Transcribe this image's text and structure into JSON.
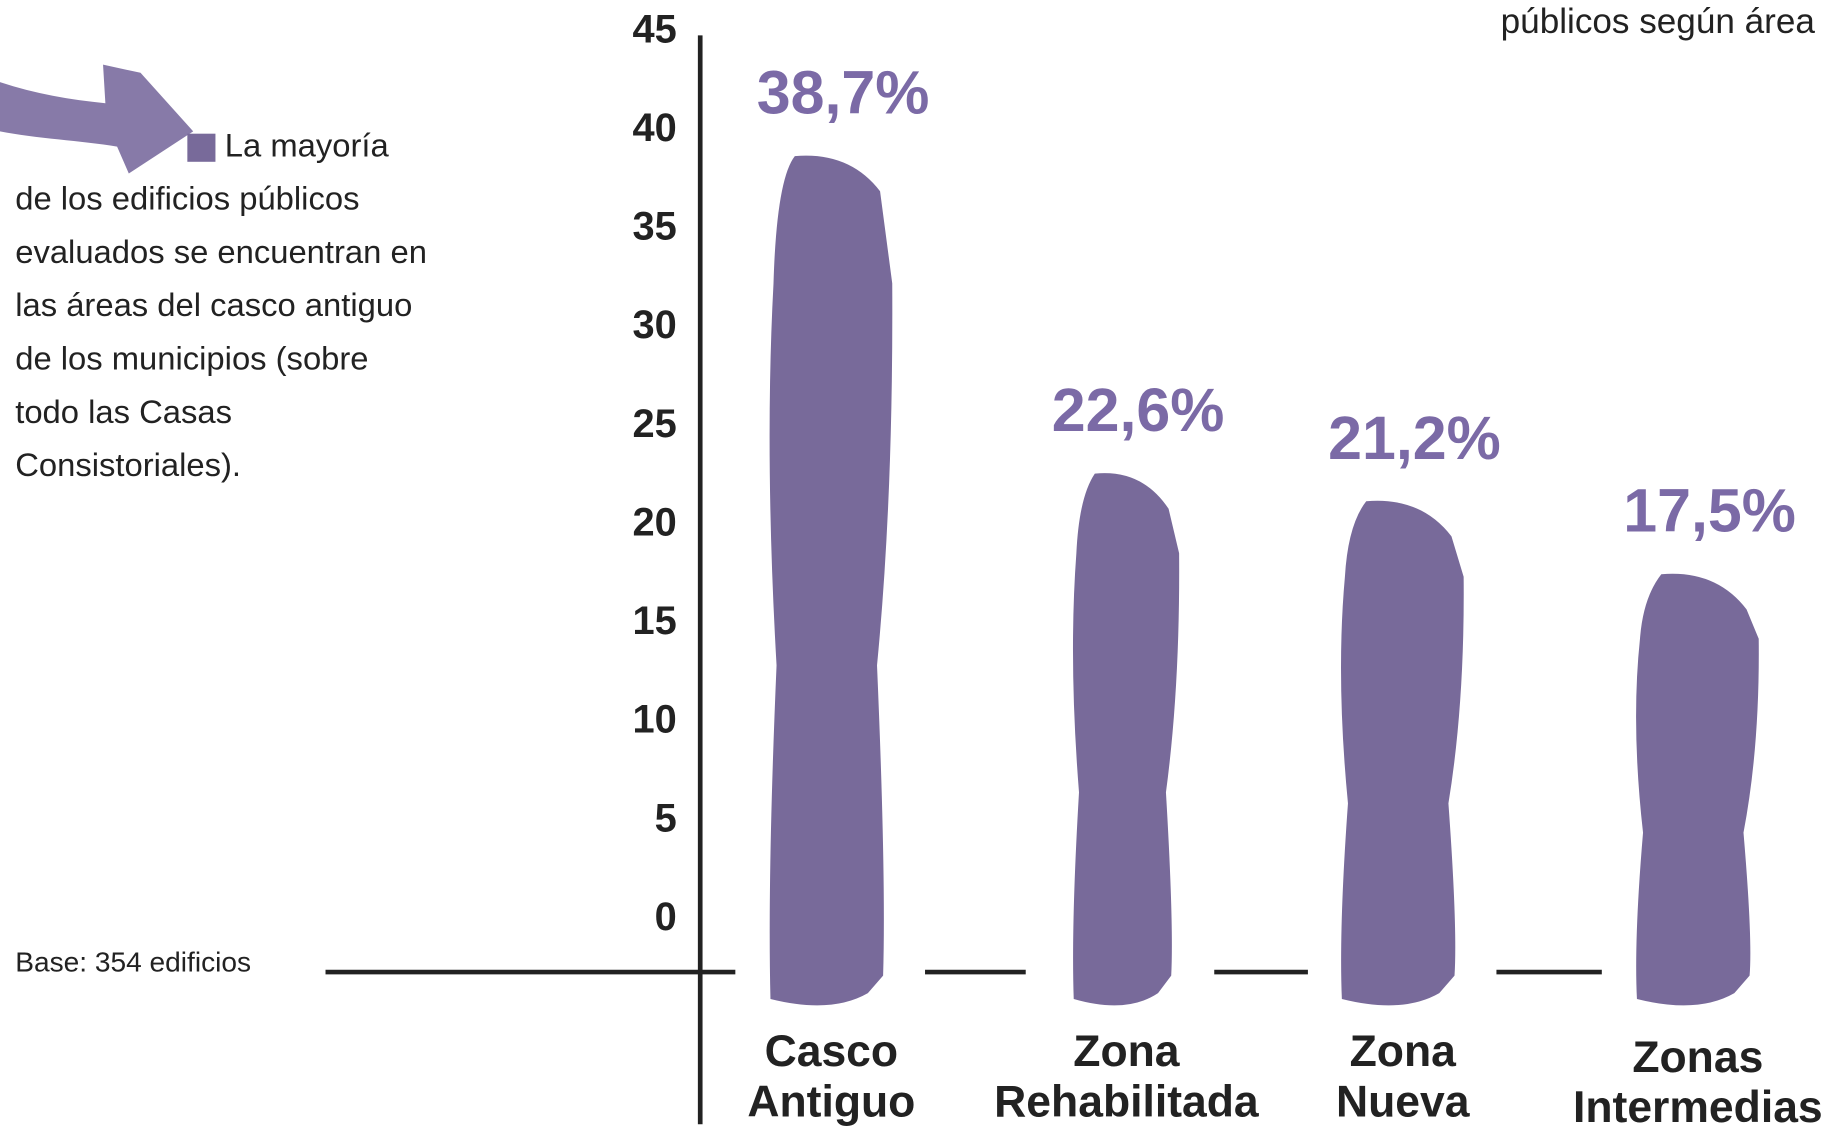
{
  "chart_data": {
    "type": "bar",
    "title": "públicos según área",
    "annotation": [
      "La mayoría",
      "de los edificios públicos",
      "evaluados se encuentran en",
      "las áreas del casco antiguo",
      "de los municipios (sobre",
      "todo las Casas",
      "Consistoriales)."
    ],
    "note": "Base: 354 edificios",
    "categories": [
      "Casco Antiguo",
      "Zona Rehabilitada",
      "Zona Nueva",
      "Zonas Intermedias"
    ],
    "values": [
      38.7,
      22.6,
      21.2,
      17.5
    ],
    "value_labels": [
      "38,7%",
      "22,6%",
      "21,2%",
      "17,5%"
    ],
    "color": "#786a9a",
    "ylim": [
      0,
      45
    ],
    "yticks": [
      0,
      5,
      10,
      15,
      20,
      25,
      30,
      35,
      40,
      45
    ],
    "grid": false
  }
}
